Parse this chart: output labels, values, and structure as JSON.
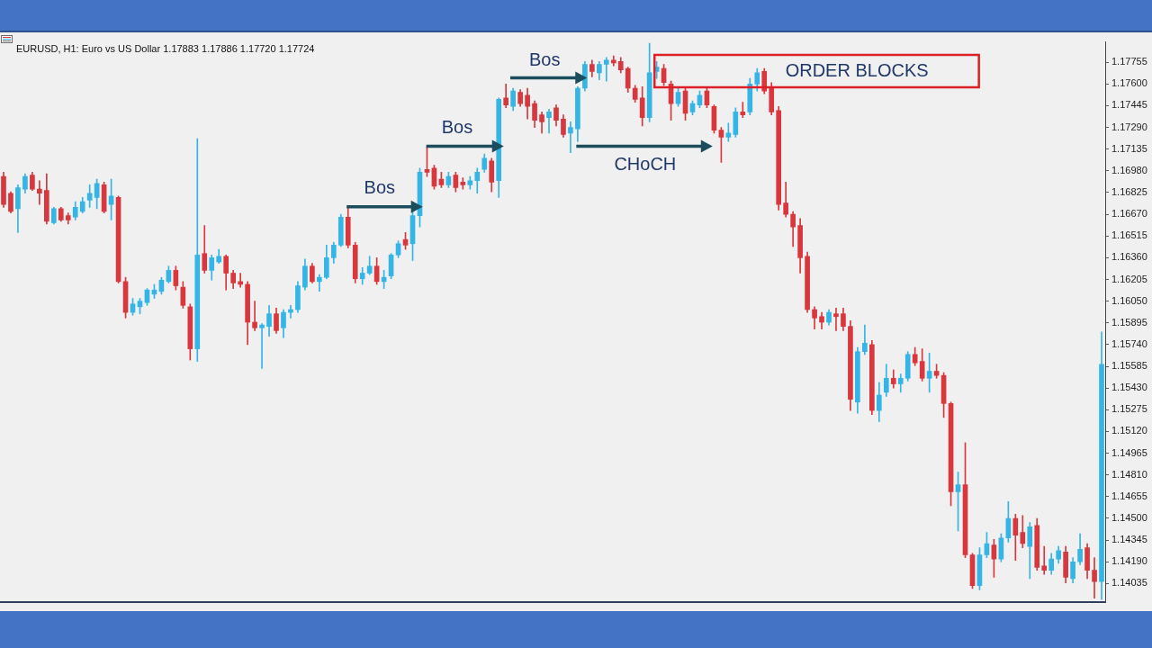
{
  "chart_data": {
    "type": "candlestick",
    "title": "EURUSD, H1: Euro vs US Dollar 1.17883 1.17886 1.17720 1.17724",
    "categories": [
      null,
      null,
      null,
      null,
      null,
      null,
      null,
      null,
      null,
      null,
      null,
      null,
      null,
      null,
      null,
      null,
      null,
      null,
      null,
      null,
      null,
      null,
      null,
      null,
      null,
      null,
      null,
      null,
      null,
      null,
      null,
      null,
      null,
      null,
      null,
      null,
      null,
      null,
      null,
      null,
      null,
      null,
      null,
      null,
      null,
      null,
      null,
      null,
      null,
      null,
      null,
      null,
      null,
      null,
      null,
      null,
      null,
      null,
      null,
      null,
      null,
      null,
      null,
      null,
      null,
      null,
      null,
      null,
      null,
      null,
      null,
      null,
      null,
      null,
      null,
      null,
      null,
      null,
      null,
      null,
      null,
      null,
      null,
      null,
      null,
      null,
      null,
      null,
      null,
      null,
      null,
      null,
      null,
      null,
      null,
      null,
      null,
      null,
      null,
      null,
      null,
      null,
      null,
      null,
      null,
      null,
      null,
      null,
      null,
      null,
      null,
      null,
      null,
      null,
      null,
      null,
      null,
      null,
      null,
      null,
      null,
      null,
      null,
      null,
      null,
      null,
      null,
      null,
      null,
      null,
      null,
      null,
      null,
      null,
      null,
      null,
      null,
      null,
      null,
      null,
      null,
      null,
      null,
      null,
      null,
      null,
      null,
      null,
      null,
      null,
      null,
      null,
      null,
      null
    ],
    "ohlc": [
      [
        1.1694,
        1.1697,
        1.1672,
        1.1674
      ],
      [
        1.1682,
        1.1683,
        1.1668,
        1.1669
      ],
      [
        1.1671,
        1.1688,
        1.1654,
        1.1686
      ],
      [
        1.1685,
        1.1696,
        1.1682,
        1.1694
      ],
      [
        1.1695,
        1.1697,
        1.1684,
        1.1685
      ],
      [
        1.1685,
        1.1691,
        1.1674,
        1.1682
      ],
      [
        1.1684,
        1.1696,
        1.166,
        1.1662
      ],
      [
        1.1661,
        1.1672,
        1.166,
        1.1671
      ],
      [
        1.1671,
        1.1672,
        1.1662,
        1.1663
      ],
      [
        1.1666,
        1.1668,
        1.166,
        1.1663
      ],
      [
        1.1665,
        1.1676,
        1.1663,
        1.1672
      ],
      [
        1.1669,
        1.1679,
        1.1668,
        1.1676
      ],
      [
        1.1677,
        1.1688,
        1.1672,
        1.1682
      ],
      [
        1.1679,
        1.1692,
        1.1671,
        1.1689
      ],
      [
        1.1688,
        1.169,
        1.1668,
        1.1669
      ],
      [
        1.1674,
        1.1692,
        1.1663,
        1.168
      ],
      [
        1.1679,
        1.168,
        1.1618,
        1.1619
      ],
      [
        1.1619,
        1.1622,
        1.1593,
        1.1597
      ],
      [
        1.1597,
        1.1607,
        1.1595,
        1.1603
      ],
      [
        1.1601,
        1.1607,
        1.1596,
        1.1605
      ],
      [
        1.1604,
        1.1614,
        1.1602,
        1.1613
      ],
      [
        1.161,
        1.1617,
        1.1607,
        1.1613
      ],
      [
        1.1612,
        1.1622,
        1.161,
        1.162
      ],
      [
        1.1619,
        1.163,
        1.1618,
        1.1627
      ],
      [
        1.1627,
        1.163,
        1.1613,
        1.1616
      ],
      [
        1.1615,
        1.1619,
        1.16,
        1.1602
      ],
      [
        1.1601,
        1.1603,
        1.1563,
        1.1571
      ],
      [
        1.1571,
        1.1721,
        1.1562,
        1.1638
      ],
      [
        1.1639,
        1.1659,
        1.1625,
        1.1627
      ],
      [
        1.1627,
        1.1638,
        1.162,
        1.1636
      ],
      [
        1.1633,
        1.1642,
        1.1632,
        1.1637
      ],
      [
        1.1637,
        1.1638,
        1.1613,
        1.1625
      ],
      [
        1.1625,
        1.1627,
        1.1614,
        1.1618
      ],
      [
        1.1619,
        1.1625,
        1.1615,
        1.1617
      ],
      [
        1.1617,
        1.1619,
        1.1574,
        1.159
      ],
      [
        1.159,
        1.1605,
        1.1584,
        1.1586
      ],
      [
        1.1586,
        1.1589,
        1.1557,
        1.1588
      ],
      [
        1.1587,
        1.1602,
        1.158,
        1.1596
      ],
      [
        1.1596,
        1.16,
        1.1582,
        1.1584
      ],
      [
        1.1586,
        1.1599,
        1.1579,
        1.1597
      ],
      [
        1.1597,
        1.1602,
        1.1593,
        1.1599
      ],
      [
        1.1599,
        1.1619,
        1.1597,
        1.1616
      ],
      [
        1.1615,
        1.1635,
        1.1613,
        1.163
      ],
      [
        1.163,
        1.1632,
        1.1618,
        1.1619
      ],
      [
        1.1619,
        1.1624,
        1.1612,
        1.1622
      ],
      [
        1.1622,
        1.1645,
        1.1621,
        1.1636
      ],
      [
        1.1636,
        1.1647,
        1.1632,
        1.1645
      ],
      [
        1.1645,
        1.1667,
        1.1644,
        1.1665
      ],
      [
        1.1665,
        1.1672,
        1.1643,
        1.1645
      ],
      [
        1.1645,
        1.1647,
        1.1618,
        1.1621
      ],
      [
        1.1621,
        1.1629,
        1.1617,
        1.1625
      ],
      [
        1.1625,
        1.1637,
        1.1624,
        1.163
      ],
      [
        1.163,
        1.1636,
        1.1617,
        1.1619
      ],
      [
        1.1619,
        1.1627,
        1.1614,
        1.1622
      ],
      [
        1.1623,
        1.1639,
        1.1621,
        1.1638
      ],
      [
        1.1638,
        1.1648,
        1.1636,
        1.1646
      ],
      [
        1.1649,
        1.1654,
        1.1642,
        1.1645
      ],
      [
        1.1646,
        1.167,
        1.1634,
        1.1666
      ],
      [
        1.1666,
        1.17,
        1.1658,
        1.1697
      ],
      [
        1.1699,
        1.1715,
        1.1694,
        1.1697
      ],
      [
        1.17,
        1.1702,
        1.1685,
        1.1687
      ],
      [
        1.1692,
        1.1697,
        1.1686,
        1.1688
      ],
      [
        1.1688,
        1.1697,
        1.1686,
        1.1694
      ],
      [
        1.1695,
        1.1697,
        1.1683,
        1.1686
      ],
      [
        1.169,
        1.1693,
        1.1685,
        1.1688
      ],
      [
        1.1688,
        1.1694,
        1.1685,
        1.1691
      ],
      [
        1.1691,
        1.17,
        1.1682,
        1.1697
      ],
      [
        1.1699,
        1.171,
        1.1697,
        1.1707
      ],
      [
        1.1705,
        1.1707,
        1.1683,
        1.169
      ],
      [
        1.1691,
        1.175,
        1.1679,
        1.1749
      ],
      [
        1.175,
        1.176,
        1.1743,
        1.1745
      ],
      [
        1.1744,
        1.1757,
        1.1741,
        1.1755
      ],
      [
        1.1754,
        1.1756,
        1.1744,
        1.1746
      ],
      [
        1.1752,
        1.1757,
        1.1735,
        1.1744
      ],
      [
        1.1746,
        1.1748,
        1.1729,
        1.1734
      ],
      [
        1.1738,
        1.174,
        1.1725,
        1.1733
      ],
      [
        1.1736,
        1.1742,
        1.1725,
        1.174
      ],
      [
        1.1743,
        1.1745,
        1.173,
        1.1734
      ],
      [
        1.1735,
        1.1738,
        1.1722,
        1.1724
      ],
      [
        1.1725,
        1.1733,
        1.1711,
        1.1729
      ],
      [
        1.1728,
        1.1758,
        1.1719,
        1.1757
      ],
      [
        1.1757,
        1.1776,
        1.1755,
        1.1774
      ],
      [
        1.1774,
        1.1777,
        1.1765,
        1.1769
      ],
      [
        1.1768,
        1.1776,
        1.1763,
        1.1774
      ],
      [
        1.1774,
        1.1779,
        1.1762,
        1.1777
      ],
      [
        1.1777,
        1.178,
        1.1773,
        1.1775
      ],
      [
        1.1776,
        1.1779,
        1.1768,
        1.177
      ],
      [
        1.1771,
        1.1772,
        1.1754,
        1.1757
      ],
      [
        1.1757,
        1.1759,
        1.1747,
        1.1749
      ],
      [
        1.175,
        1.1758,
        1.173,
        1.1736
      ],
      [
        1.1736,
        1.1789,
        1.1733,
        1.1768
      ],
      [
        1.1769,
        1.1776,
        1.1764,
        1.1772
      ],
      [
        1.1771,
        1.1774,
        1.1759,
        1.1761
      ],
      [
        1.176,
        1.1762,
        1.1734,
        1.1746
      ],
      [
        1.1746,
        1.1757,
        1.1744,
        1.1754
      ],
      [
        1.1755,
        1.1758,
        1.1734,
        1.1739
      ],
      [
        1.174,
        1.1748,
        1.1738,
        1.1746
      ],
      [
        1.1745,
        1.1755,
        1.1743,
        1.1752
      ],
      [
        1.1755,
        1.1758,
        1.1743,
        1.1745
      ],
      [
        1.1744,
        1.1745,
        1.1725,
        1.1727
      ],
      [
        1.1727,
        1.1729,
        1.1704,
        1.1722
      ],
      [
        1.1722,
        1.1732,
        1.1719,
        1.1725
      ],
      [
        1.1724,
        1.1743,
        1.1722,
        1.174
      ],
      [
        1.174,
        1.1747,
        1.1736,
        1.1738
      ],
      [
        1.174,
        1.1764,
        1.1738,
        1.176
      ],
      [
        1.176,
        1.1771,
        1.1755,
        1.1768
      ],
      [
        1.1769,
        1.1771,
        1.1753,
        1.1755
      ],
      [
        1.1757,
        1.1761,
        1.1738,
        1.174
      ],
      [
        1.1741,
        1.1744,
        1.167,
        1.1674
      ],
      [
        1.1675,
        1.169,
        1.1665,
        1.1667
      ],
      [
        1.1667,
        1.1669,
        1.1644,
        1.1658
      ],
      [
        1.1659,
        1.1664,
        1.1625,
        1.1636
      ],
      [
        1.1637,
        1.164,
        1.1597,
        1.1599
      ],
      [
        1.1599,
        1.1601,
        1.1585,
        1.1593
      ],
      [
        1.1594,
        1.1597,
        1.1585,
        1.159
      ],
      [
        1.159,
        1.1599,
        1.1588,
        1.1597
      ],
      [
        1.1596,
        1.16,
        1.1584,
        1.1594
      ],
      [
        1.1596,
        1.16,
        1.1584,
        1.1587
      ],
      [
        1.1587,
        1.1591,
        1.1527,
        1.1535
      ],
      [
        1.1533,
        1.1572,
        1.1525,
        1.1569
      ],
      [
        1.1569,
        1.1588,
        1.1567,
        1.1575
      ],
      [
        1.1574,
        1.1577,
        1.1524,
        1.1527
      ],
      [
        1.1527,
        1.1547,
        1.1519,
        1.1538
      ],
      [
        1.154,
        1.156,
        1.1537,
        1.155
      ],
      [
        1.155,
        1.1556,
        1.1543,
        1.1546
      ],
      [
        1.1546,
        1.1553,
        1.154,
        1.155
      ],
      [
        1.155,
        1.1569,
        1.1548,
        1.1567
      ],
      [
        1.1567,
        1.1572,
        1.1559,
        1.1561
      ],
      [
        1.1562,
        1.1571,
        1.1548,
        1.155
      ],
      [
        1.155,
        1.1568,
        1.154,
        1.1555
      ],
      [
        1.1555,
        1.156,
        1.155,
        1.1552
      ],
      [
        1.1552,
        1.1554,
        1.1522,
        1.1532
      ],
      [
        1.1532,
        1.1533,
        1.1459,
        1.1469
      ],
      [
        1.1469,
        1.1483,
        1.1441,
        1.1474
      ],
      [
        1.1474,
        1.1504,
        1.1422,
        1.1424
      ],
      [
        1.1424,
        1.1425,
        1.14,
        1.1402
      ],
      [
        1.1402,
        1.1429,
        1.1399,
        1.1424
      ],
      [
        1.1424,
        1.144,
        1.1422,
        1.1432
      ],
      [
        1.1431,
        1.1435,
        1.1408,
        1.1421
      ],
      [
        1.1421,
        1.1439,
        1.1419,
        1.1436
      ],
      [
        1.1436,
        1.1462,
        1.1433,
        1.145
      ],
      [
        1.145,
        1.1453,
        1.142,
        1.1438
      ],
      [
        1.144,
        1.1452,
        1.1429,
        1.1432
      ],
      [
        1.143,
        1.1447,
        1.1407,
        1.1444
      ],
      [
        1.1445,
        1.145,
        1.1413,
        1.1415
      ],
      [
        1.1416,
        1.143,
        1.141,
        1.1413
      ],
      [
        1.1413,
        1.1425,
        1.141,
        1.1421
      ],
      [
        1.1421,
        1.143,
        1.1418,
        1.1427
      ],
      [
        1.1426,
        1.143,
        1.1404,
        1.1408
      ],
      [
        1.1407,
        1.1422,
        1.1404,
        1.1419
      ],
      [
        1.1419,
        1.1439,
        1.1417,
        1.1428
      ],
      [
        1.1429,
        1.1432,
        1.1407,
        1.1413
      ],
      [
        1.1413,
        1.1422,
        1.1393,
        1.1405
      ],
      [
        1.1405,
        1.1583,
        1.1392,
        1.156
      ]
    ],
    "colors": [
      "#d7373d",
      "#d7373d",
      "#34b5e5",
      "#34b5e5",
      "#d7373d",
      "#d7373d",
      "#d7373d",
      "#34b5e5",
      "#d7373d",
      "#d7373d",
      "#34b5e5",
      "#34b5e5",
      "#34b5e5",
      "#34b5e5",
      "#d7373d",
      "#34b5e5",
      "#d7373d",
      "#d7373d",
      "#34b5e5",
      "#34b5e5",
      "#34b5e5",
      "#34b5e5",
      "#34b5e5",
      "#34b5e5",
      "#d7373d",
      "#d7373d",
      "#d7373d",
      "#34b5e5",
      "#d7373d",
      "#34b5e5",
      "#34b5e5",
      "#d7373d",
      "#d7373d",
      "#d7373d",
      "#d7373d",
      "#d7373d",
      "#34b5e5",
      "#34b5e5",
      "#d7373d",
      "#34b5e5",
      "#34b5e5",
      "#34b5e5",
      "#34b5e5",
      "#d7373d",
      "#34b5e5",
      "#34b5e5",
      "#34b5e5",
      "#34b5e5",
      "#d7373d",
      "#d7373d",
      "#34b5e5",
      "#34b5e5",
      "#d7373d",
      "#34b5e5",
      "#34b5e5",
      "#34b5e5",
      "#d7373d",
      "#34b5e5",
      "#34b5e5",
      "#d7373d",
      "#d7373d",
      "#d7373d",
      "#34b5e5",
      "#d7373d",
      "#d7373d",
      "#34b5e5",
      "#34b5e5",
      "#34b5e5",
      "#d7373d",
      "#34b5e5",
      "#d7373d",
      "#34b5e5",
      "#d7373d",
      "#d7373d",
      "#d7373d",
      "#d7373d",
      "#34b5e5",
      "#d7373d",
      "#d7373d",
      "#34b5e5",
      "#34b5e5",
      "#34b5e5",
      "#d7373d",
      "#34b5e5",
      "#34b5e5",
      "#d7373d",
      "#d7373d",
      "#d7373d",
      "#d7373d",
      "#d7373d",
      "#34b5e5",
      "#34b5e5",
      "#d7373d",
      "#d7373d",
      "#34b5e5",
      "#d7373d",
      "#34b5e5",
      "#34b5e5",
      "#d7373d",
      "#d7373d",
      "#d7373d",
      "#34b5e5",
      "#34b5e5",
      "#d7373d",
      "#34b5e5",
      "#34b5e5",
      "#d7373d",
      "#d7373d",
      "#d7373d",
      "#d7373d",
      "#d7373d",
      "#d7373d",
      "#d7373d",
      "#d7373d",
      "#d7373d",
      "#34b5e5",
      "#d7373d",
      "#d7373d",
      "#d7373d",
      "#34b5e5",
      "#34b5e5",
      "#d7373d",
      "#34b5e5",
      "#34b5e5",
      "#d7373d",
      "#34b5e5",
      "#34b5e5",
      "#d7373d",
      "#d7373d",
      "#34b5e5",
      "#d7373d",
      "#d7373d",
      "#d7373d",
      "#34b5e5",
      "#d7373d",
      "#d7373d",
      "#34b5e5",
      "#34b5e5",
      "#d7373d",
      "#34b5e5",
      "#34b5e5",
      "#d7373d",
      "#d7373d",
      "#34b5e5",
      "#d7373d",
      "#d7373d",
      "#34b5e5",
      "#34b5e5",
      "#d7373d",
      "#34b5e5",
      "#34b5e5",
      "#d7373d",
      "#d7373d",
      "#34b5e5"
    ],
    "ylim": [
      1.139,
      1.179
    ],
    "yticks": [
      {
        "value": 1.14035,
        "label": "1.14035"
      },
      {
        "value": 1.1419,
        "label": "1.14190"
      },
      {
        "value": 1.14345,
        "label": "1.14345"
      },
      {
        "value": 1.145,
        "label": "1.14500"
      },
      {
        "value": 1.14655,
        "label": "1.14655"
      },
      {
        "value": 1.1481,
        "label": "1.14810"
      },
      {
        "value": 1.14965,
        "label": "1.14965"
      },
      {
        "value": 1.1512,
        "label": "1.15120"
      },
      {
        "value": 1.15275,
        "label": "1.15275"
      },
      {
        "value": 1.1543,
        "label": "1.15430"
      },
      {
        "value": 1.15585,
        "label": "1.15585"
      },
      {
        "value": 1.1574,
        "label": "1.15740"
      },
      {
        "value": 1.15895,
        "label": "1.15895"
      },
      {
        "value": 1.1605,
        "label": "1.16050"
      },
      {
        "value": 1.16205,
        "label": "1.16205"
      },
      {
        "value": 1.1636,
        "label": "1.16360"
      },
      {
        "value": 1.16515,
        "label": "1.16515"
      },
      {
        "value": 1.1667,
        "label": "1.16670"
      },
      {
        "value": 1.16825,
        "label": "1.16825"
      },
      {
        "value": 1.1698,
        "label": "1.16980"
      },
      {
        "value": 1.17135,
        "label": "1.17135"
      },
      {
        "value": 1.1729,
        "label": "1.17290"
      },
      {
        "value": 1.17445,
        "label": "1.17445"
      },
      {
        "value": 1.176,
        "label": "1.17600"
      },
      {
        "value": 1.17755,
        "label": "1.17755"
      }
    ],
    "tick_labels": "y",
    "annotations": [
      "Bos",
      "Bos",
      "Bos",
      "CHoCH",
      "ORDER BLOCKS"
    ]
  }
}
